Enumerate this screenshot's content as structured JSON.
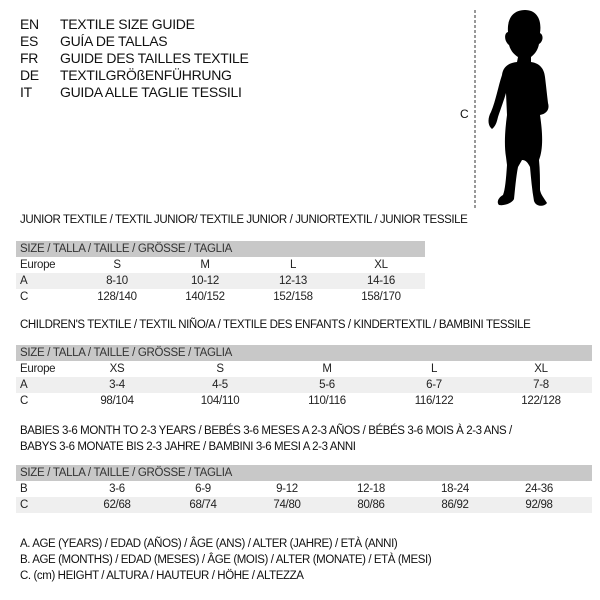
{
  "languages": [
    {
      "code": "EN",
      "text": "TEXTILE SIZE GUIDE"
    },
    {
      "code": "ES",
      "text": "GUÍA DE TALLAS"
    },
    {
      "code": "FR",
      "text": "GUIDE DES TAILLES TEXTILE"
    },
    {
      "code": "DE",
      "text": "TEXTILGRÖßENFÜHRUNG"
    },
    {
      "code": "IT",
      "text": "GUIDA ALLE TAGLIE TESSILI"
    }
  ],
  "figure": {
    "label": "C",
    "icon": "child-silhouette"
  },
  "tables": [
    {
      "title": "JUNIOR TEXTILE / TEXTIL JUNIOR/ TEXTILE JUNIOR / JUNIORTEXTIL / JUNIOR TESSILE",
      "header": "SIZE / TALLA / TAILLE / GRÖSSE / TAGLIA",
      "rows": [
        {
          "label": "Europe",
          "values": [
            "S",
            "M",
            "L",
            "XL"
          ]
        },
        {
          "label": "A",
          "values": [
            "8-10",
            "10-12",
            "12-13",
            "14-16"
          ]
        },
        {
          "label": "C",
          "values": [
            "128/140",
            "140/152",
            "152/158",
            "158/170"
          ]
        }
      ]
    },
    {
      "title": "CHILDREN'S TEXTILE / TEXTIL NIÑO/A / TEXTILE DES ENFANTS / KINDERTEXTIL / BAMBINI TESSILE",
      "header": "SIZE / TALLA / TAILLE / GRÖSSE / TAGLIA",
      "rows": [
        {
          "label": "Europe",
          "values": [
            "XS",
            "S",
            "M",
            "L",
            "XL"
          ]
        },
        {
          "label": "A",
          "values": [
            "3-4",
            "4-5",
            "5-6",
            "6-7",
            "7-8"
          ]
        },
        {
          "label": "C",
          "values": [
            "98/104",
            "104/110",
            "110/116",
            "116/122",
            "122/128"
          ]
        }
      ]
    },
    {
      "title": "BABIES 3-6 MONTH TO 2-3 YEARS / BEBÉS 3-6 MESES A 2-3 AÑOS / BÉBÉS 3-6 MOIS À 2-3 ANS /",
      "title2": "BABYS 3-6 MONATE BIS 2-3 JAHRE / BAMBINI 3-6 MESI A 2-3 ANNI",
      "header": "SIZE / TALLA / TAILLE / GRÖSSE / TAGLIA",
      "rows": [
        {
          "label": "B",
          "values": [
            "3-6",
            "6-9",
            "9-12",
            "12-18",
            "18-24",
            "24-36"
          ]
        },
        {
          "label": "C",
          "values": [
            "62/68",
            "68/74",
            "74/80",
            "80/86",
            "86/92",
            "92/98"
          ]
        }
      ]
    }
  ],
  "legend": [
    "A. AGE (YEARS) / EDAD (AÑOS) / ÂGE (ANS) / ALTER (JAHRE) / ETÀ (ANNI)",
    "B. AGE (MONTHS) / EDAD (MESES) / ÂGE (MOIS) / ALTER (MONATE) / ETÀ (MESI)",
    "C. (cm) HEIGHT / ALTURA / HAUTEUR / HÖHE / ALTEZZA"
  ]
}
